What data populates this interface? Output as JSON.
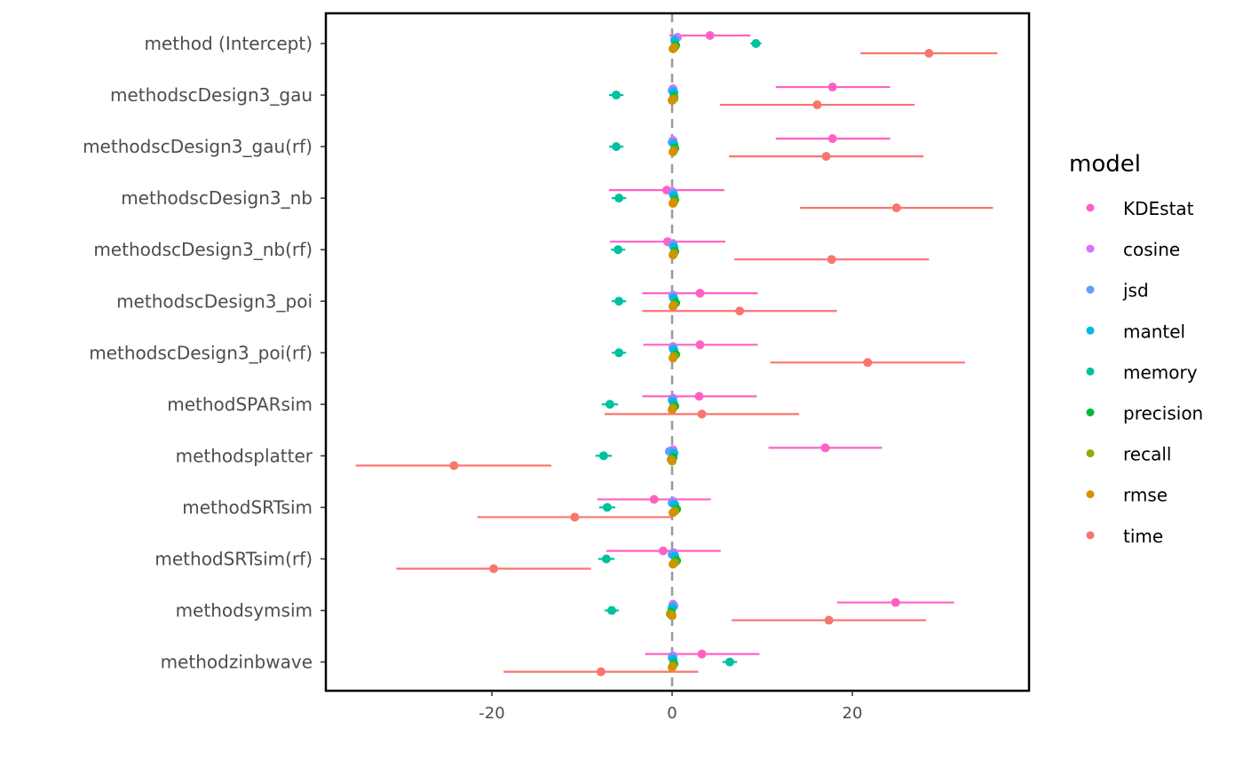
{
  "chart_data": {
    "type": "scatter",
    "subtype": "coefficient dot-and-whisker",
    "xlim": [
      -38.5,
      39.5
    ],
    "xticks": [
      -20,
      0,
      20
    ],
    "reference_line_x": 0,
    "grid": false,
    "legend_position": "right",
    "legend_title": "model",
    "categories": [
      "method (Intercept)",
      "methodscDesign3_gau",
      "methodscDesign3_gau(rf)",
      "methodscDesign3_nb",
      "methodscDesign3_nb(rf)",
      "methodscDesign3_poi",
      "methodscDesign3_poi(rf)",
      "methodSPARsim",
      "methodsplatter",
      "methodSRTsim",
      "methodSRTsim(rf)",
      "methodsymsim",
      "methodzinbwave"
    ],
    "series": [
      {
        "name": "KDEstat",
        "color": "#FF61C3",
        "estimates": [
          4.2,
          17.8,
          17.8,
          -0.6,
          -0.5,
          3.1,
          3.1,
          3.0,
          17.0,
          -2.0,
          -1.0,
          24.8,
          3.3
        ],
        "lower": [
          -0.3,
          11.5,
          11.5,
          -7.0,
          -6.9,
          -3.3,
          -3.2,
          -3.3,
          10.7,
          -8.3,
          -7.3,
          18.3,
          -3.0
        ],
        "upper": [
          8.7,
          24.2,
          24.2,
          5.8,
          5.9,
          9.5,
          9.5,
          9.4,
          23.3,
          4.3,
          5.4,
          31.3,
          9.7
        ]
      },
      {
        "name": "cosine",
        "color": "#DB72FB",
        "estimates": [
          0.6,
          0.1,
          0.1,
          0.1,
          0.1,
          0.1,
          0.1,
          0.1,
          0.1,
          0.1,
          0.2,
          0.1,
          0.1
        ],
        "lower": [],
        "upper": []
      },
      {
        "name": "jsd",
        "color": "#619CFF",
        "estimates": [
          0.3,
          0.0,
          0.0,
          0.1,
          0.1,
          0.1,
          0.1,
          0.0,
          -0.3,
          0.0,
          0.0,
          0.2,
          0.0
        ],
        "lower": [],
        "upper": []
      },
      {
        "name": "mantel",
        "color": "#00B9E3",
        "estimates": [
          0.3,
          0.2,
          0.2,
          0.2,
          0.2,
          0.2,
          0.2,
          0.1,
          0.2,
          0.3,
          0.3,
          0.0,
          0.1
        ],
        "lower": [],
        "upper": []
      },
      {
        "name": "memory",
        "color": "#00C19F",
        "estimates": [
          9.3,
          -6.2,
          -6.2,
          -5.9,
          -6.0,
          -5.9,
          -5.9,
          -6.9,
          -7.6,
          -7.2,
          -7.3,
          -6.7,
          6.4
        ],
        "lower": [
          8.7,
          -7.0,
          -7.0,
          -6.7,
          -6.8,
          -6.7,
          -6.7,
          -7.8,
          -8.5,
          -8.1,
          -8.2,
          -7.5,
          5.6
        ],
        "upper": [
          9.9,
          -5.4,
          -5.4,
          -5.1,
          -5.2,
          -5.1,
          -5.1,
          -6.0,
          -6.7,
          -6.3,
          -6.4,
          -5.9,
          7.2
        ]
      },
      {
        "name": "precision",
        "color": "#00BA38",
        "estimates": [
          0.4,
          0.2,
          0.3,
          0.3,
          0.3,
          0.4,
          0.4,
          0.3,
          0.1,
          0.5,
          0.5,
          -0.1,
          0.2
        ],
        "lower": [],
        "upper": []
      },
      {
        "name": "recall",
        "color": "#93AA00",
        "estimates": [
          0.3,
          0.2,
          0.2,
          0.2,
          0.2,
          0.2,
          0.2,
          0.1,
          -0.1,
          0.3,
          0.3,
          -0.2,
          0.1
        ],
        "lower": [],
        "upper": []
      },
      {
        "name": "rmse",
        "color": "#D39200",
        "estimates": [
          0.1,
          0.0,
          0.1,
          0.1,
          0.1,
          0.1,
          0.1,
          0.0,
          0.0,
          0.1,
          0.1,
          0.0,
          0.0
        ],
        "lower": [],
        "upper": []
      },
      {
        "name": "time",
        "color": "#F8766D",
        "estimates": [
          28.5,
          16.1,
          17.1,
          24.9,
          17.7,
          7.5,
          21.7,
          3.3,
          -24.2,
          -10.8,
          -19.8,
          17.4,
          -7.9
        ],
        "lower": [
          20.9,
          5.3,
          6.3,
          14.2,
          6.9,
          -3.3,
          10.9,
          -7.5,
          -35.1,
          -21.6,
          -30.6,
          6.6,
          -18.7
        ],
        "upper": [
          36.1,
          26.9,
          27.9,
          35.6,
          28.5,
          18.3,
          32.5,
          14.1,
          -13.4,
          0.0,
          -9.0,
          28.2,
          2.9
        ]
      }
    ]
  }
}
